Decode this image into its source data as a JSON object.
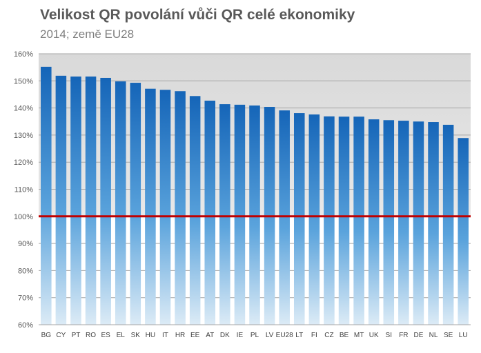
{
  "header": {
    "title": "Velikost QR povolání vůči QR celé ekonomiky",
    "subtitle": "2014; země EU28"
  },
  "colors": {
    "bar_top": "#1565b8",
    "bar_bottom": "#dcebf6",
    "reference_line": "#c00000",
    "plot_band_upper": "#d9d9d9",
    "gridline": "#a6a6a6"
  },
  "chart_data": {
    "type": "bar",
    "title": "Velikost QR povolání vůči QR celé ekonomiky",
    "subtitle": "2014; země EU28",
    "xlabel": "",
    "ylabel": "",
    "categories": [
      "BG",
      "CY",
      "PT",
      "RO",
      "ES",
      "EL",
      "SK",
      "HU",
      "IT",
      "HR",
      "EE",
      "AT",
      "DK",
      "IE",
      "PL",
      "LV",
      "EU28",
      "LT",
      "FI",
      "CZ",
      "BE",
      "MT",
      "UK",
      "SI",
      "FR",
      "DE",
      "NL",
      "SE",
      "LU"
    ],
    "values": [
      155.2,
      151.9,
      151.6,
      151.6,
      151.1,
      149.8,
      149.3,
      147.1,
      146.7,
      146.2,
      144.4,
      142.7,
      141.4,
      141.2,
      140.9,
      140.4,
      139.1,
      138.1,
      137.6,
      136.9,
      136.8,
      136.8,
      135.8,
      135.5,
      135.3,
      135.0,
      134.8,
      133.8,
      128.9
    ],
    "ylim": [
      60,
      160
    ],
    "yticks": [
      "60%",
      "70%",
      "80%",
      "90%",
      "100%",
      "110%",
      "120%",
      "130%",
      "140%",
      "150%",
      "160%"
    ],
    "reference_line": 100,
    "grid": true,
    "legend": "none"
  }
}
